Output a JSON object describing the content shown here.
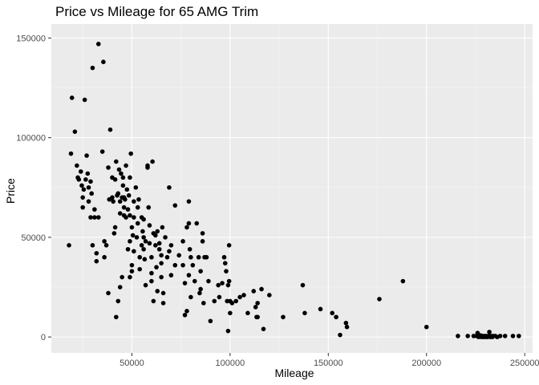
{
  "chart_data": {
    "type": "scatter",
    "title": "Price vs Mileage for 65 AMG Trim",
    "xlabel": "Mileage",
    "ylabel": "Price",
    "xlim": [
      9000,
      254000
    ],
    "ylim": [
      -8000,
      157000
    ],
    "xticks": [
      50000,
      100000,
      150000,
      200000,
      250000
    ],
    "xtick_labels": [
      "50000",
      "100000",
      "150000",
      "200000",
      "250000"
    ],
    "yticks": [
      0,
      50000,
      100000,
      150000
    ],
    "ytick_labels": [
      "0",
      "50000",
      "100000",
      "150000"
    ],
    "grid": true,
    "legend": "none",
    "colors": {
      "panel": "#ebebeb",
      "grid_major": "#ffffff",
      "grid_minor": "#f5f5f5",
      "point": "#000000",
      "tick": "#333333"
    },
    "points": [
      [
        18000,
        46000
      ],
      [
        19000,
        92000
      ],
      [
        19500,
        120000
      ],
      [
        21000,
        103000
      ],
      [
        22000,
        86000
      ],
      [
        22500,
        80000
      ],
      [
        23000,
        79000
      ],
      [
        24000,
        83000
      ],
      [
        24500,
        76000
      ],
      [
        25000,
        70000
      ],
      [
        25000,
        65000
      ],
      [
        25500,
        74000
      ],
      [
        26000,
        119000
      ],
      [
        26500,
        79000
      ],
      [
        27000,
        91000
      ],
      [
        27500,
        82000
      ],
      [
        28000,
        75000
      ],
      [
        28000,
        68000
      ],
      [
        29000,
        78000
      ],
      [
        29000,
        60000
      ],
      [
        29500,
        72000
      ],
      [
        30000,
        135000
      ],
      [
        30000,
        46000
      ],
      [
        31000,
        64000
      ],
      [
        31000,
        60000
      ],
      [
        32000,
        42000
      ],
      [
        32000,
        38000
      ],
      [
        33000,
        147000
      ],
      [
        33000,
        60000
      ],
      [
        35000,
        93000
      ],
      [
        35500,
        138000
      ],
      [
        36000,
        48000
      ],
      [
        36000,
        40000
      ],
      [
        37000,
        46000
      ],
      [
        38000,
        22000
      ],
      [
        38000,
        85000
      ],
      [
        38500,
        69000
      ],
      [
        39000,
        104000
      ],
      [
        40000,
        70000
      ],
      [
        40000,
        80000
      ],
      [
        40500,
        68000
      ],
      [
        41000,
        52000
      ],
      [
        41500,
        55000
      ],
      [
        41500,
        79000
      ],
      [
        42000,
        10000
      ],
      [
        42000,
        88000
      ],
      [
        42500,
        71000
      ],
      [
        43000,
        18000
      ],
      [
        43000,
        72000
      ],
      [
        43500,
        84000
      ],
      [
        44000,
        25000
      ],
      [
        44000,
        62000
      ],
      [
        44000,
        68000
      ],
      [
        44500,
        82000
      ],
      [
        45000,
        30000
      ],
      [
        45000,
        70000
      ],
      [
        45500,
        80000
      ],
      [
        45500,
        76000
      ],
      [
        46000,
        65000
      ],
      [
        46000,
        61000
      ],
      [
        46000,
        70000
      ],
      [
        46500,
        69000
      ],
      [
        47000,
        86000
      ],
      [
        47000,
        60000
      ],
      [
        47500,
        74000
      ],
      [
        48000,
        64000
      ],
      [
        48000,
        44000
      ],
      [
        48500,
        71000
      ],
      [
        49000,
        80000
      ],
      [
        49000,
        61000
      ],
      [
        49000,
        30000
      ],
      [
        49000,
        48000
      ],
      [
        49500,
        92000
      ],
      [
        50000,
        55000
      ],
      [
        50000,
        36000
      ],
      [
        50000,
        33000
      ],
      [
        50500,
        51000
      ],
      [
        51000,
        68000
      ],
      [
        51000,
        60000
      ],
      [
        51000,
        43000
      ],
      [
        52000,
        75000
      ],
      [
        52500,
        50000
      ],
      [
        53000,
        65000
      ],
      [
        53000,
        57000
      ],
      [
        53500,
        69000
      ],
      [
        54000,
        40000
      ],
      [
        54000,
        34000
      ],
      [
        55000,
        60000
      ],
      [
        55000,
        46000
      ],
      [
        55500,
        53000
      ],
      [
        56000,
        44000
      ],
      [
        56000,
        59000
      ],
      [
        56000,
        50000
      ],
      [
        56500,
        39000
      ],
      [
        57000,
        26000
      ],
      [
        57000,
        48000
      ],
      [
        58000,
        86000
      ],
      [
        58000,
        85000
      ],
      [
        58500,
        65000
      ],
      [
        59000,
        56000
      ],
      [
        59000,
        47000
      ],
      [
        60000,
        40000
      ],
      [
        60000,
        32000
      ],
      [
        60000,
        28000
      ],
      [
        60500,
        88000
      ],
      [
        61000,
        52000
      ],
      [
        61000,
        18000
      ],
      [
        62000,
        46000
      ],
      [
        62000,
        51000
      ],
      [
        62500,
        35000
      ],
      [
        63000,
        23000
      ],
      [
        63000,
        53000
      ],
      [
        64000,
        47000
      ],
      [
        64000,
        44000
      ],
      [
        65000,
        41000
      ],
      [
        65000,
        37000
      ],
      [
        65000,
        30000
      ],
      [
        65500,
        55000
      ],
      [
        66000,
        22000
      ],
      [
        66000,
        17000
      ],
      [
        67000,
        50000
      ],
      [
        68000,
        40000
      ],
      [
        69000,
        75000
      ],
      [
        69000,
        43000
      ],
      [
        70000,
        46000
      ],
      [
        70000,
        31000
      ],
      [
        72000,
        66000
      ],
      [
        72000,
        36000
      ],
      [
        74000,
        41000
      ],
      [
        76000,
        36000
      ],
      [
        76000,
        48000
      ],
      [
        77000,
        27000
      ],
      [
        77000,
        11000
      ],
      [
        78000,
        13000
      ],
      [
        78000,
        55000
      ],
      [
        79000,
        57000
      ],
      [
        79000,
        68000
      ],
      [
        79000,
        31000
      ],
      [
        79500,
        44000
      ],
      [
        80000,
        40000
      ],
      [
        80000,
        20000
      ],
      [
        81000,
        36000
      ],
      [
        82000,
        28000
      ],
      [
        83000,
        57000
      ],
      [
        84000,
        40000
      ],
      [
        84500,
        22000
      ],
      [
        85000,
        24000
      ],
      [
        85000,
        33000
      ],
      [
        86000,
        52000
      ],
      [
        86000,
        48000
      ],
      [
        86500,
        17000
      ],
      [
        87000,
        40000
      ],
      [
        88000,
        40000
      ],
      [
        89000,
        28000
      ],
      [
        90000,
        8000
      ],
      [
        92000,
        18000
      ],
      [
        94000,
        26000
      ],
      [
        94500,
        20000
      ],
      [
        96000,
        27000
      ],
      [
        97000,
        40000
      ],
      [
        97500,
        37000
      ],
      [
        98000,
        33000
      ],
      [
        98500,
        18000
      ],
      [
        99000,
        3000
      ],
      [
        99000,
        26000
      ],
      [
        99500,
        46000
      ],
      [
        99500,
        28000
      ],
      [
        100000,
        18000
      ],
      [
        100000,
        12000
      ],
      [
        101000,
        17000
      ],
      [
        103000,
        18000
      ],
      [
        105000,
        20000
      ],
      [
        107000,
        21000
      ],
      [
        109000,
        12000
      ],
      [
        112000,
        23000
      ],
      [
        113000,
        15000
      ],
      [
        113500,
        10000
      ],
      [
        114000,
        17000
      ],
      [
        114000,
        10000
      ],
      [
        116000,
        24000
      ],
      [
        117000,
        4000
      ],
      [
        120000,
        21000
      ],
      [
        127000,
        10000
      ],
      [
        137000,
        26000
      ],
      [
        138000,
        12000
      ],
      [
        146000,
        14000
      ],
      [
        152000,
        12000
      ],
      [
        154000,
        10000
      ],
      [
        156000,
        1000
      ],
      [
        159000,
        7000
      ],
      [
        159500,
        5000
      ],
      [
        176000,
        19000
      ],
      [
        188000,
        28000
      ],
      [
        200000,
        5000
      ],
      [
        216000,
        500
      ],
      [
        221000,
        500
      ],
      [
        224000,
        500
      ],
      [
        225500,
        500
      ],
      [
        226000,
        2000
      ],
      [
        226500,
        0
      ],
      [
        227000,
        500
      ],
      [
        227500,
        800
      ],
      [
        228000,
        0
      ],
      [
        228500,
        500
      ],
      [
        229000,
        0
      ],
      [
        229500,
        500
      ],
      [
        230000,
        0
      ],
      [
        230500,
        500
      ],
      [
        231000,
        0
      ],
      [
        231500,
        500
      ],
      [
        232000,
        2500
      ],
      [
        232500,
        0
      ],
      [
        233000,
        500
      ],
      [
        233500,
        0
      ],
      [
        234000,
        500
      ],
      [
        235000,
        500
      ],
      [
        236000,
        0
      ],
      [
        237500,
        500
      ],
      [
        240000,
        500
      ],
      [
        244000,
        500
      ],
      [
        247000,
        500
      ]
    ]
  }
}
